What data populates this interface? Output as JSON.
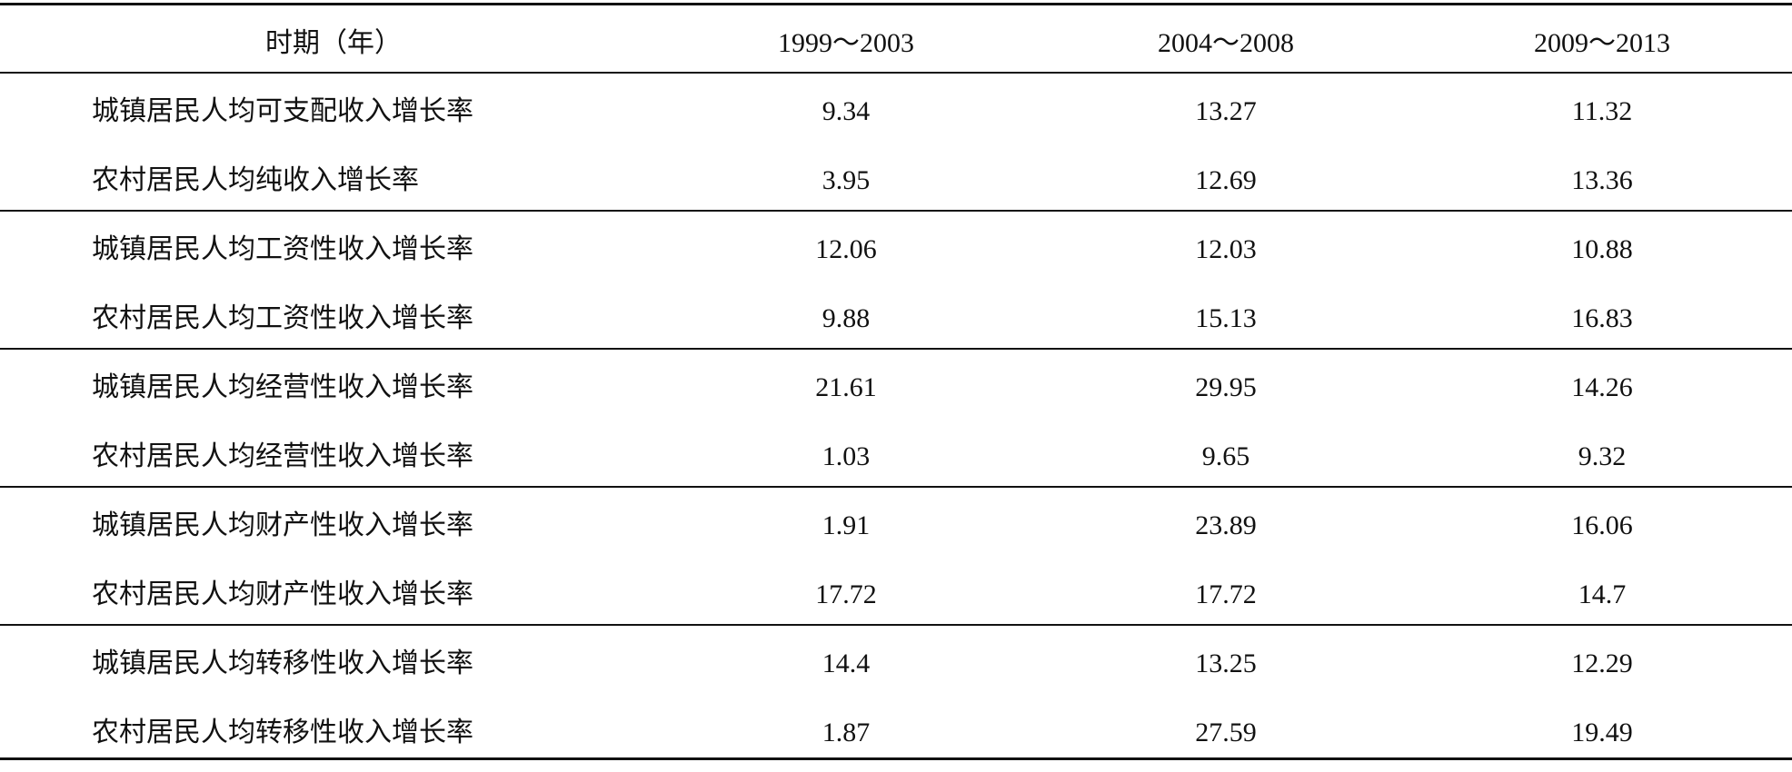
{
  "table": {
    "header": [
      "时期（年）",
      "1999～2003",
      "2004～2008",
      "2009～2013"
    ],
    "rows": [
      [
        "城镇居民人均可支配收入增长率",
        "9.34",
        "13.27",
        "11.32"
      ],
      [
        "农村居民人均纯收入增长率",
        "3.95",
        "12.69",
        "13.36"
      ],
      [
        "城镇居民人均工资性收入增长率",
        "12.06",
        "12.03",
        "10.88"
      ],
      [
        "农村居民人均工资性收入增长率",
        "9.88",
        "15.13",
        "16.83"
      ],
      [
        "城镇居民人均经营性收入增长率",
        "21.61",
        "29.95",
        "14.26"
      ],
      [
        "农村居民人均经营性收入增长率",
        "1.03",
        "9.65",
        "9.32"
      ],
      [
        "城镇居民人均财产性收入增长率",
        "1.91",
        "23.89",
        "16.06"
      ],
      [
        "农村居民人均财产性收入增长率",
        "17.72",
        "17.72",
        "14.7"
      ],
      [
        "城镇居民人均转移性收入增长率",
        "14.4",
        "13.25",
        "12.29"
      ],
      [
        "农村居民人均转移性收入增长率",
        "1.87",
        "27.59",
        "19.49"
      ]
    ]
  }
}
